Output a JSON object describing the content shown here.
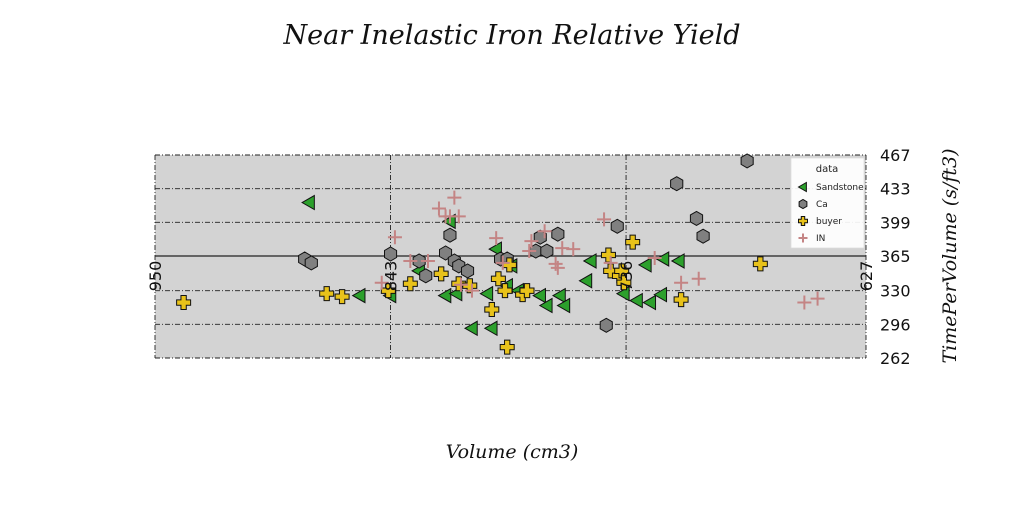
{
  "chart_data": {
    "type": "scatter",
    "title": "Near Inelastic Iron Relative Yield",
    "xlabel": "Volume (cm3)",
    "ylabel": "TimePerVolume (s/ft3)",
    "xlim": [
      950,
      627
    ],
    "ylim": [
      262,
      467
    ],
    "x_ticks": [
      950,
      843,
      736,
      627
    ],
    "x_tick_labels": [
      "950",
      "843",
      "736",
      "627"
    ],
    "y_ticks": [
      262,
      296,
      330,
      365,
      399,
      433,
      467
    ],
    "y_tick_labels": [
      "262",
      "296",
      "330",
      "365",
      "399",
      "433",
      "467"
    ],
    "grid": true,
    "reference_line_y": 365,
    "legend": {
      "title": "data",
      "position": "top-right"
    },
    "series": [
      {
        "name": "Sandstone",
        "marker": "triangle-left",
        "color": "#2ca02c",
        "x": [
          880,
          857,
          843,
          830,
          818,
          813,
          806,
          816,
          797,
          799,
          795,
          790,
          788,
          785,
          775,
          772,
          766,
          764,
          754,
          752,
          737,
          731,
          727,
          725,
          720,
          719,
          712
        ],
        "y": [
          419,
          325,
          325,
          350,
          325,
          327,
          292,
          400,
          292,
          327,
          372,
          335,
          355,
          330,
          325,
          315,
          325,
          315,
          340,
          360,
          327,
          320,
          356,
          318,
          326,
          362,
          360
        ]
      },
      {
        "name": "Ca",
        "marker": "hexagon",
        "color": "#808080",
        "x": [
          882,
          879,
          843,
          830,
          827,
          818,
          816,
          814,
          812,
          808,
          793,
          790,
          777,
          775,
          772,
          767,
          745,
          740,
          713,
          704,
          701,
          681
        ],
        "y": [
          362,
          358,
          367,
          360,
          345,
          368,
          386,
          360,
          355,
          350,
          362,
          362,
          370,
          384,
          370,
          387,
          295,
          395,
          438,
          403,
          385,
          461
        ]
      },
      {
        "name": "buyer",
        "marker": "plus",
        "color": "#e8c21a",
        "x": [
          937,
          872,
          865,
          844,
          834,
          820,
          812,
          807,
          797,
          794,
          791,
          790,
          789,
          783,
          781,
          744,
          743,
          739,
          738,
          737,
          733,
          711,
          675
        ],
        "y": [
          318,
          327,
          324,
          330,
          337,
          347,
          337,
          335,
          311,
          342,
          330,
          273,
          356,
          326,
          330,
          366,
          350,
          345,
          350,
          338,
          379,
          321,
          357
        ]
      },
      {
        "name": "IN",
        "marker": "cross",
        "color": "#c48484",
        "x": [
          847,
          841,
          834,
          826,
          821,
          818,
          816,
          814,
          812,
          811,
          806,
          795,
          792,
          780,
          779,
          773,
          768,
          767,
          765,
          760,
          746,
          743,
          723,
          711,
          703,
          655,
          649
        ],
        "y": [
          338,
          384,
          360,
          360,
          413,
          405,
          405,
          424,
          405,
          336,
          330,
          383,
          358,
          370,
          380,
          390,
          357,
          353,
          373,
          372,
          402,
          358,
          363,
          338,
          342,
          318,
          322
        ]
      }
    ]
  }
}
